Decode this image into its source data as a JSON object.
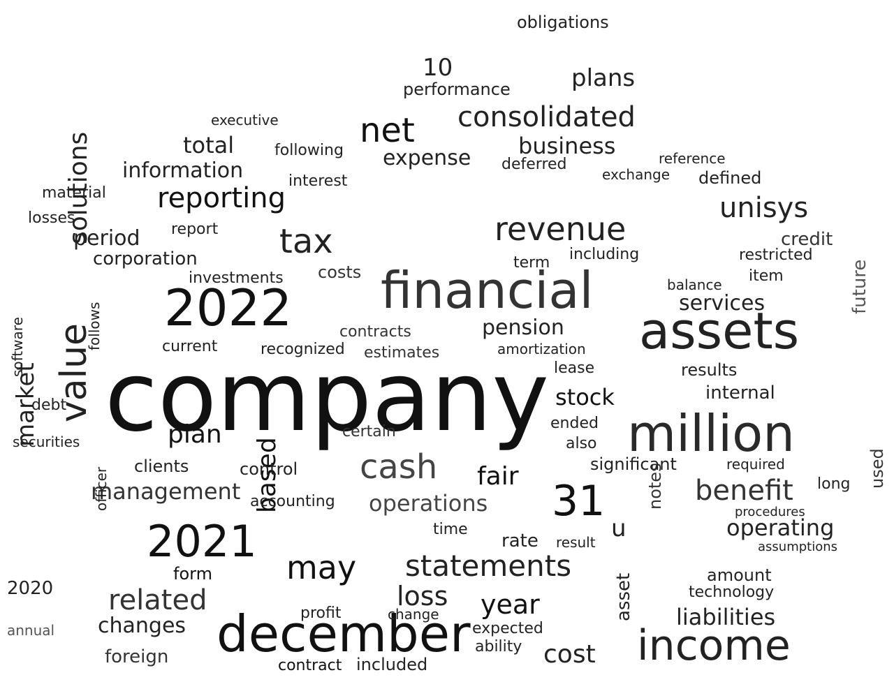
{
  "words": [
    {
      "text": "company",
      "size": 138,
      "color": "#111111"
    },
    {
      "text": "december",
      "size": 72,
      "color": "#111111"
    },
    {
      "text": "financial",
      "size": 72,
      "color": "#333333"
    },
    {
      "text": "assets",
      "size": 72,
      "color": "#222222"
    },
    {
      "text": "million",
      "size": 72,
      "color": "#2a2a2a"
    },
    {
      "text": "2022",
      "size": 72,
      "color": "#111111"
    },
    {
      "text": "income",
      "size": 60,
      "color": "#222222"
    },
    {
      "text": "2021",
      "size": 62,
      "color": "#111111"
    },
    {
      "text": "31",
      "size": 60,
      "color": "#111111"
    },
    {
      "text": "revenue",
      "size": 46,
      "color": "#222222"
    },
    {
      "text": "value",
      "size": 52,
      "color": "#222222"
    },
    {
      "text": "net",
      "size": 48,
      "color": "#111111"
    },
    {
      "text": "tax",
      "size": 48,
      "color": "#222222"
    },
    {
      "text": "cash",
      "size": 48,
      "color": "#444444"
    },
    {
      "text": "may",
      "size": 46,
      "color": "#111111"
    },
    {
      "text": "statements",
      "size": 42,
      "color": "#222222"
    },
    {
      "text": "consolidated",
      "size": 40,
      "color": "#222222"
    },
    {
      "text": "reporting",
      "size": 40,
      "color": "#111111"
    },
    {
      "text": "benefit",
      "size": 40,
      "color": "#333333"
    },
    {
      "text": "related",
      "size": 40,
      "color": "#333333"
    },
    {
      "text": "unisys",
      "size": 40,
      "color": "#222222"
    },
    {
      "text": "year",
      "size": 38,
      "color": "#111111"
    },
    {
      "text": "loss",
      "size": 38,
      "color": "#222222"
    },
    {
      "text": "cost",
      "size": 36,
      "color": "#222222"
    },
    {
      "text": "plan",
      "size": 36,
      "color": "#111111"
    },
    {
      "text": "fair",
      "size": 36,
      "color": "#111111"
    },
    {
      "text": "based",
      "size": 36,
      "color": "#111111"
    },
    {
      "text": "solutions",
      "size": 36,
      "color": "#222222"
    },
    {
      "text": "market",
      "size": 34,
      "color": "#222222"
    },
    {
      "text": "operations",
      "size": 32,
      "color": "#444444"
    },
    {
      "text": "management",
      "size": 32,
      "color": "#333333"
    },
    {
      "text": "liabilities",
      "size": 32,
      "color": "#222222"
    },
    {
      "text": "operating",
      "size": 32,
      "color": "#222222"
    },
    {
      "text": "plans",
      "size": 34,
      "color": "#222222"
    },
    {
      "text": "business",
      "size": 32,
      "color": "#222222"
    },
    {
      "text": "expense",
      "size": 30,
      "color": "#222222"
    },
    {
      "text": "total",
      "size": 32,
      "color": "#222222"
    },
    {
      "text": "period",
      "size": 30,
      "color": "#222222"
    },
    {
      "text": "information",
      "size": 30,
      "color": "#222222"
    },
    {
      "text": "pension",
      "size": 30,
      "color": "#222222"
    },
    {
      "text": "stock",
      "size": 32,
      "color": "#111111"
    },
    {
      "text": "10",
      "size": 34,
      "color": "#222222"
    },
    {
      "text": "u",
      "size": 34,
      "color": "#222222"
    },
    {
      "text": "changes",
      "size": 30,
      "color": "#222222"
    },
    {
      "text": "services",
      "size": 30,
      "color": "#222222"
    },
    {
      "text": "contract",
      "size": 22,
      "color": "#111111"
    },
    {
      "text": "included",
      "size": 24,
      "color": "#222222"
    },
    {
      "text": "foreign",
      "size": 26,
      "color": "#333333"
    },
    {
      "text": "corporation",
      "size": 26,
      "color": "#222222"
    },
    {
      "text": "form",
      "size": 24,
      "color": "#111111"
    },
    {
      "text": "credit",
      "size": 26,
      "color": "#333333"
    },
    {
      "text": "internal",
      "size": 26,
      "color": "#222222"
    },
    {
      "text": "future",
      "size": 26,
      "color": "#555555"
    },
    {
      "text": "notes",
      "size": 24,
      "color": "#333333"
    },
    {
      "text": "asset",
      "size": 26,
      "color": "#222222"
    },
    {
      "text": "amount",
      "size": 24,
      "color": "#222222"
    },
    {
      "text": "used",
      "size": 24,
      "color": "#333333"
    },
    {
      "text": "significant",
      "size": 24,
      "color": "#222222"
    },
    {
      "text": "obligations",
      "size": 24,
      "color": "#222222"
    },
    {
      "text": "performance",
      "size": 24,
      "color": "#222222"
    },
    {
      "text": "defined",
      "size": 24,
      "color": "#222222"
    },
    {
      "text": "restricted",
      "size": 22,
      "color": "#222222"
    },
    {
      "text": "results",
      "size": 24,
      "color": "#222222"
    },
    {
      "text": "item",
      "size": 22,
      "color": "#222222"
    },
    {
      "text": "clients",
      "size": 24,
      "color": "#222222"
    },
    {
      "text": "control",
      "size": 24,
      "color": "#222222"
    },
    {
      "text": "accounting",
      "size": 22,
      "color": "#222222"
    },
    {
      "text": "costs",
      "size": 24,
      "color": "#333333"
    },
    {
      "text": "contracts",
      "size": 22,
      "color": "#333333"
    },
    {
      "text": "estimates",
      "size": 22,
      "color": "#333333"
    },
    {
      "text": "recognized",
      "size": 22,
      "color": "#222222"
    },
    {
      "text": "current",
      "size": 22,
      "color": "#222222"
    },
    {
      "text": "investments",
      "size": 22,
      "color": "#222222"
    },
    {
      "text": "material",
      "size": 22,
      "color": "#222222"
    },
    {
      "text": "losses",
      "size": 22,
      "color": "#222222"
    },
    {
      "text": "debt",
      "size": 22,
      "color": "#222222"
    },
    {
      "text": "securities",
      "size": 20,
      "color": "#222222"
    },
    {
      "text": "software",
      "size": 20,
      "color": "#222222"
    },
    {
      "text": "2020",
      "size": 26,
      "color": "#222222"
    },
    {
      "text": "annual",
      "size": 20,
      "color": "#555555"
    },
    {
      "text": "exchange",
      "size": 20,
      "color": "#222222"
    },
    {
      "text": "deferred",
      "size": 22,
      "color": "#222222"
    },
    {
      "text": "interest",
      "size": 22,
      "color": "#222222"
    },
    {
      "text": "following",
      "size": 22,
      "color": "#222222"
    },
    {
      "text": "executive",
      "size": 20,
      "color": "#222222"
    },
    {
      "text": "report",
      "size": 22,
      "color": "#222222"
    },
    {
      "text": "including",
      "size": 22,
      "color": "#222222"
    },
    {
      "text": "term",
      "size": 22,
      "color": "#222222"
    },
    {
      "text": "balance",
      "size": 20,
      "color": "#222222"
    },
    {
      "text": "lease",
      "size": 22,
      "color": "#222222"
    },
    {
      "text": "ended",
      "size": 22,
      "color": "#222222"
    },
    {
      "text": "also",
      "size": 22,
      "color": "#222222"
    },
    {
      "text": "rate",
      "size": 26,
      "color": "#222222"
    },
    {
      "text": "time",
      "size": 22,
      "color": "#222222"
    },
    {
      "text": "certain",
      "size": 22,
      "color": "#333333"
    },
    {
      "text": "amortization",
      "size": 20,
      "color": "#222222"
    },
    {
      "text": "expected",
      "size": 22,
      "color": "#222222"
    },
    {
      "text": "technology",
      "size": 22,
      "color": "#222222"
    },
    {
      "text": "ability",
      "size": 22,
      "color": "#222222"
    },
    {
      "text": "change",
      "size": 20,
      "color": "#222222"
    },
    {
      "text": "profit",
      "size": 22,
      "color": "#222222"
    },
    {
      "text": "long",
      "size": 22,
      "color": "#222222"
    },
    {
      "text": "required",
      "size": 20,
      "color": "#222222"
    },
    {
      "text": "reference",
      "size": 20,
      "color": "#222222"
    },
    {
      "text": "procedures",
      "size": 18,
      "color": "#222222"
    },
    {
      "text": "assumptions",
      "size": 18,
      "color": "#222222"
    },
    {
      "text": "result",
      "size": 20,
      "color": "#222222"
    },
    {
      "text": "officer",
      "size": 20,
      "color": "#222222"
    },
    {
      "text": "follows",
      "size": 20,
      "color": "#222222"
    }
  ]
}
